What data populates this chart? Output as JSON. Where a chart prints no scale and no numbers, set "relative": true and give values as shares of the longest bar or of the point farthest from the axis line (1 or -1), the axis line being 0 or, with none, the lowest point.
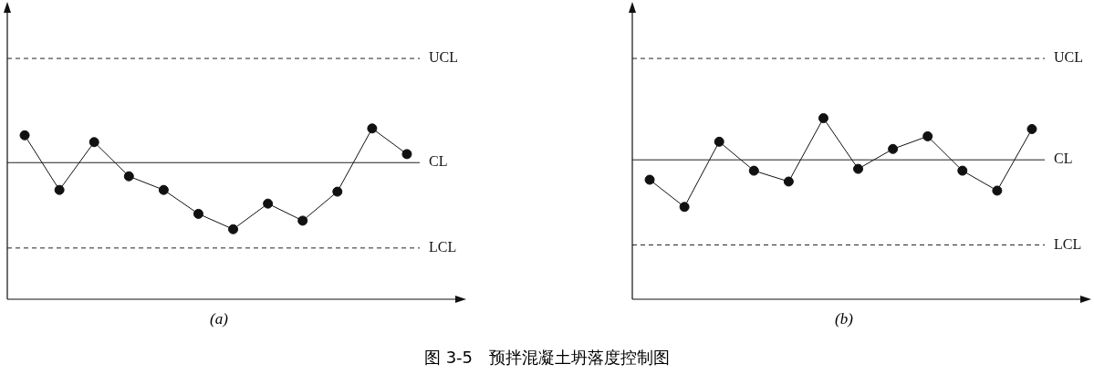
{
  "chart_data": [
    {
      "type": "line",
      "relative": true,
      "xlabel": "(a)",
      "categories": [
        null,
        null,
        null,
        null,
        null,
        null,
        null,
        null,
        null,
        null,
        null,
        null
      ],
      "series": [
        {
          "color": "#111111",
          "values": [
            0.96,
            0.64,
            0.92,
            0.72,
            0.64,
            0.5,
            0.41,
            0.56,
            0.46,
            0.63,
            1,
            0.85
          ]
        }
      ],
      "marker": "circle",
      "line_style": "solid",
      "grid": false,
      "legend": false,
      "ref_lines": [
        {
          "axis": "y",
          "value": 1.41,
          "label": "UCL",
          "line_style": "dashed",
          "color": "#222222"
        },
        {
          "axis": "y",
          "value": 0.8,
          "label": "CL",
          "line_style": "solid",
          "color": "#222222"
        },
        {
          "axis": "y",
          "value": 0.3,
          "label": "LCL",
          "line_style": "dashed",
          "color": "#222222"
        }
      ],
      "annotations": [
        "图 3-5　预拌混凝土坍落度控制图"
      ]
    },
    {
      "type": "line",
      "relative": true,
      "xlabel": "(b)",
      "categories": [
        null,
        null,
        null,
        null,
        null,
        null,
        null,
        null,
        null,
        null,
        null,
        null
      ],
      "series": [
        {
          "color": "#111111",
          "values": [
            0.66,
            0.51,
            0.87,
            0.71,
            0.65,
            1,
            0.72,
            0.83,
            0.9,
            0.71,
            0.6,
            0.94
          ]
        }
      ],
      "marker": "circle",
      "line_style": "solid",
      "grid": false,
      "legend": false,
      "ref_lines": [
        {
          "axis": "y",
          "value": 1.33,
          "label": "UCL",
          "line_style": "dashed",
          "color": "#222222"
        },
        {
          "axis": "y",
          "value": 0.77,
          "label": "CL",
          "line_style": "solid",
          "color": "#222222"
        },
        {
          "axis": "y",
          "value": 0.3,
          "label": "LCL",
          "line_style": "dashed",
          "color": "#222222"
        }
      ]
    }
  ]
}
